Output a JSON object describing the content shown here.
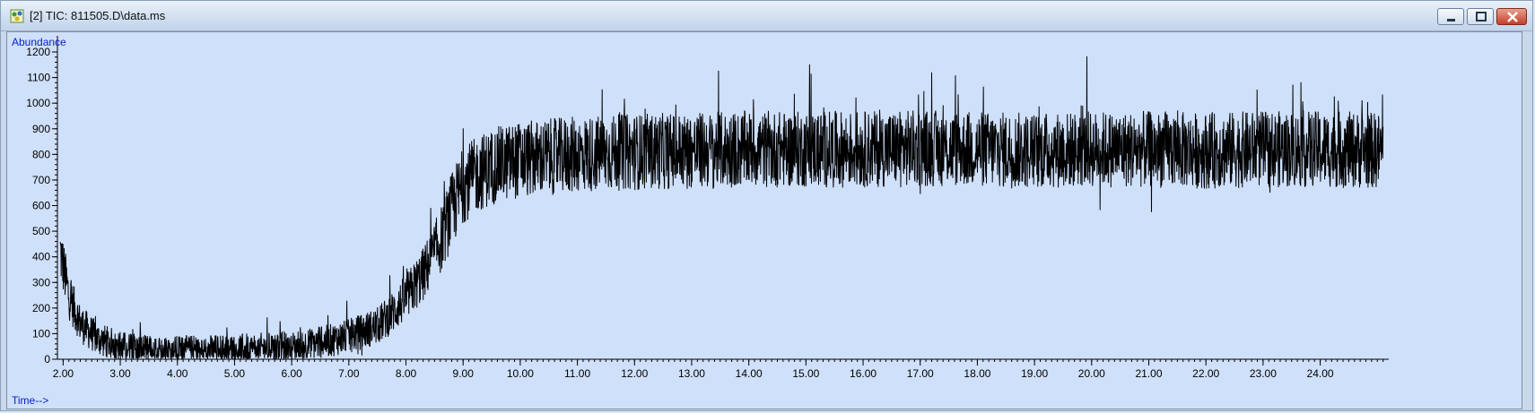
{
  "window": {
    "title": "[2] TIC: 811505.D\\data.ms",
    "icons": {
      "app": "chromatogram-app-icon",
      "minimize": "minimize-icon",
      "maximize": "maximize-icon",
      "close": "close-icon"
    }
  },
  "chart_data": {
    "type": "line",
    "ylabel": "Abundance",
    "xlabel": "Time-->",
    "xlim": [
      1.9,
      25.2
    ],
    "ylim": [
      0,
      1200
    ],
    "x_ticks": [
      2.0,
      3.0,
      4.0,
      5.0,
      6.0,
      7.0,
      8.0,
      9.0,
      10.0,
      11.0,
      12.0,
      13.0,
      14.0,
      15.0,
      16.0,
      17.0,
      18.0,
      19.0,
      20.0,
      21.0,
      22.0,
      23.0,
      24.0
    ],
    "x_tick_labels": [
      "2.00",
      "3.00",
      "4.00",
      "5.00",
      "6.00",
      "7.00",
      "8.00",
      "9.00",
      "10.00",
      "11.00",
      "12.00",
      "13.00",
      "14.00",
      "15.00",
      "16.00",
      "17.00",
      "18.00",
      "19.00",
      "20.00",
      "21.00",
      "22.00",
      "23.00",
      "24.00"
    ],
    "y_ticks": [
      0,
      100,
      200,
      300,
      400,
      500,
      600,
      700,
      800,
      900,
      1000,
      1100,
      1200
    ],
    "y_tick_labels": [
      "0",
      "100",
      "200",
      "300",
      "400",
      "500",
      "600",
      "700",
      "800",
      "900",
      "1000",
      "1100",
      "1200"
    ],
    "line_color": "#000000",
    "background_color": "#cfe0fa",
    "label_color": "#0a1ec8",
    "series": [
      {
        "trend_x": [
          1.95,
          2.1,
          2.3,
          2.6,
          3.0,
          3.5,
          4.0,
          5.0,
          6.0,
          6.5,
          7.0,
          7.5,
          7.8,
          8.0,
          8.3,
          8.6,
          8.8,
          9.0,
          9.3,
          9.6,
          10.0,
          10.5,
          11.0,
          12.0,
          13.0,
          14.0,
          15.0,
          16.0,
          17.0,
          18.0,
          19.0,
          20.0,
          21.0,
          22.0,
          23.0,
          24.0,
          25.1
        ],
        "trend_y": [
          420,
          250,
          140,
          80,
          50,
          35,
          35,
          40,
          50,
          65,
          90,
          130,
          190,
          240,
          330,
          460,
          580,
          680,
          730,
          760,
          780,
          790,
          800,
          810,
          815,
          820,
          820,
          820,
          825,
          820,
          815,
          820,
          820,
          815,
          820,
          820,
          815
        ],
        "noise_amplitude": 150,
        "max_peak": 1280,
        "min_trough": 420
      }
    ]
  }
}
